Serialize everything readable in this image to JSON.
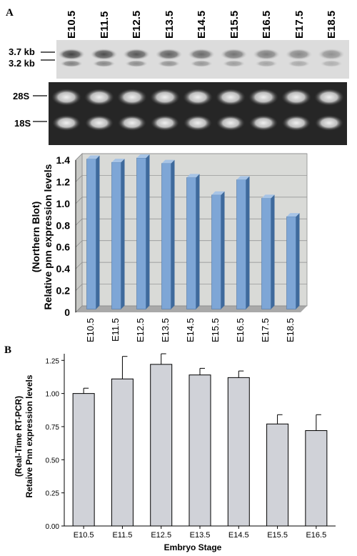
{
  "panels": {
    "a_letter": "A",
    "b_letter": "B"
  },
  "northern_blot": {
    "lanes": [
      "E10.5",
      "E11.5",
      "E12.5",
      "E13.5",
      "E14.5",
      "E15.5",
      "E16.5",
      "E17.5",
      "E18.5"
    ],
    "band_labels": [
      "3.7 kb",
      "3.2 kb"
    ],
    "rrna_labels": [
      "28S",
      "18S"
    ]
  },
  "chart_data": [
    {
      "type": "bar",
      "categories": [
        "E10.5",
        "E11.5",
        "E12.5",
        "E13.5",
        "E14.5",
        "E15.5",
        "E16.5",
        "E17.5",
        "E18.5"
      ],
      "values": [
        1.38,
        1.35,
        1.39,
        1.34,
        1.21,
        1.05,
        1.19,
        1.02,
        0.85
      ],
      "ylabel_line1": "Relative pnn expression levels",
      "ylabel_line2": "(Northern Blot)",
      "xlabel": "",
      "ylim": [
        0,
        1.4
      ],
      "yticks": [
        "0",
        "0.2",
        "0.4",
        "0.6",
        "0.8",
        "1.0",
        "1.2",
        "1.4"
      ],
      "bar_color": "#7ea6d6",
      "grid": true
    },
    {
      "type": "bar",
      "categories": [
        "E10.5",
        "E11.5",
        "E12.5",
        "E13.5",
        "E14.5",
        "E15.5",
        "E16.5"
      ],
      "values": [
        1.0,
        1.11,
        1.22,
        1.14,
        1.12,
        0.77,
        0.72
      ],
      "errors": [
        0.04,
        0.17,
        0.08,
        0.05,
        0.05,
        0.07,
        0.12
      ],
      "ylabel_line1": "Retaive Pnn expression levels",
      "ylabel_line2": "(Real-Time RT-PCR)",
      "xlabel": "Embryo Stage",
      "ylim": [
        0,
        1.3
      ],
      "yticks": [
        "0.00",
        "0.25",
        "0.50",
        "0.75",
        "1.00",
        "1.25"
      ],
      "bar_color": "#d0d2d8",
      "grid": false
    }
  ]
}
